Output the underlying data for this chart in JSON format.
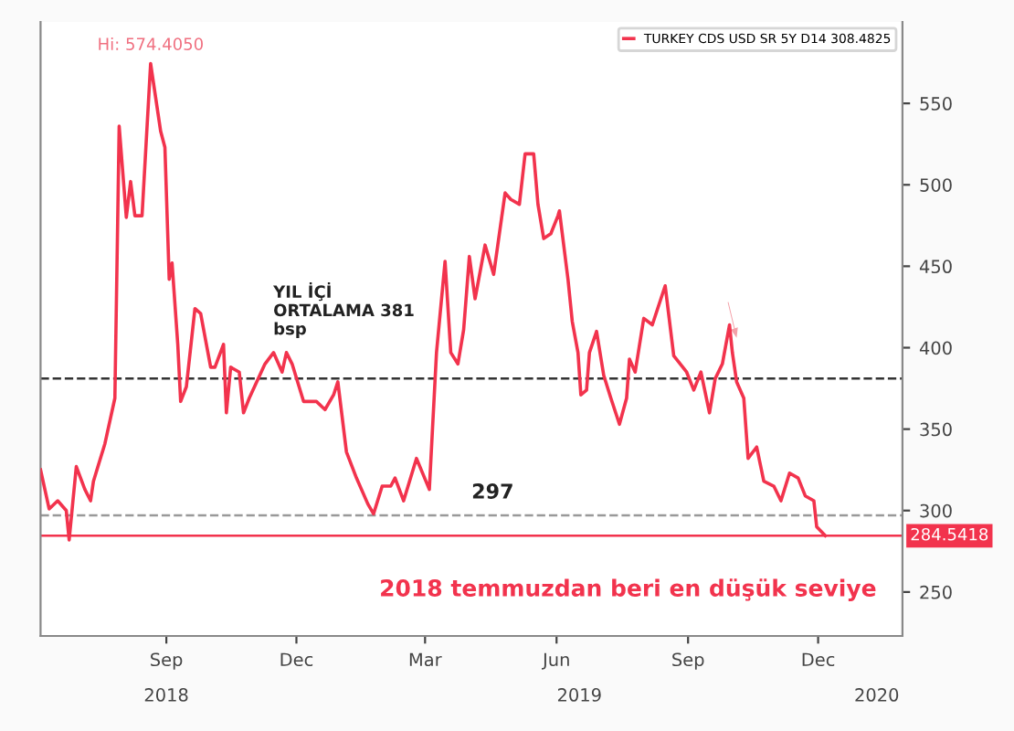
{
  "chart_data": {
    "type": "line",
    "x": [
      "2018-06-19",
      "2018-06-25",
      "2018-07-01",
      "2018-07-07",
      "2018-07-09",
      "2018-07-14",
      "2018-07-20",
      "2018-07-24",
      "2018-07-26",
      "2018-08-03",
      "2018-08-10",
      "2018-08-13",
      "2018-08-18",
      "2018-08-21",
      "2018-08-24",
      "2018-08-29",
      "2018-09-04",
      "2018-09-11",
      "2018-09-14",
      "2018-09-17",
      "2018-09-19",
      "2018-09-23",
      "2018-09-25",
      "2018-09-29",
      "2018-10-05",
      "2018-10-09",
      "2018-10-16",
      "2018-10-19",
      "2018-10-25",
      "2018-10-27",
      "2018-10-30",
      "2018-11-05",
      "2018-11-08",
      "2018-11-12",
      "2018-11-23",
      "2018-11-29",
      "2018-12-05",
      "2018-12-08",
      "2018-12-12",
      "2018-12-20",
      "2018-12-29",
      "2019-01-04",
      "2019-01-10",
      "2019-01-13",
      "2019-01-19",
      "2019-01-26",
      "2019-02-03",
      "2019-02-07",
      "2019-02-13",
      "2019-02-19",
      "2019-02-22",
      "2019-02-28",
      "2019-03-09",
      "2019-03-18",
      "2019-03-23",
      "2019-03-29",
      "2019-04-02",
      "2019-04-07",
      "2019-04-11",
      "2019-04-15",
      "2019-04-19",
      "2019-04-26",
      "2019-05-02",
      "2019-05-10",
      "2019-05-14",
      "2019-05-20",
      "2019-05-24",
      "2019-05-30",
      "2019-06-02",
      "2019-06-06",
      "2019-06-11",
      "2019-06-16",
      "2019-06-17",
      "2019-06-23",
      "2019-06-26",
      "2019-06-30",
      "2019-07-02",
      "2019-07-06",
      "2019-07-08",
      "2019-07-13",
      "2019-07-18",
      "2019-07-23",
      "2019-07-29",
      "2019-08-03",
      "2019-08-05",
      "2019-08-09",
      "2019-08-15",
      "2019-08-21",
      "2019-08-30",
      "2019-09-05",
      "2019-09-14",
      "2019-09-19",
      "2019-09-24",
      "2019-09-30",
      "2019-10-04",
      "2019-10-09",
      "2019-10-14",
      "2019-10-16",
      "2019-10-19",
      "2019-10-24",
      "2019-10-27",
      "2019-11-02",
      "2019-11-07",
      "2019-11-14",
      "2019-11-19",
      "2019-11-25",
      "2019-12-01",
      "2019-12-06",
      "2019-12-12",
      "2019-12-14",
      "2019-12-20"
    ],
    "series": [
      {
        "name": "TURKEY CDS USD SR 5Y D14 308.4825",
        "color": "#f2334d",
        "values": [
          325,
          301,
          306,
          300,
          282,
          327,
          313,
          306,
          318,
          341,
          369,
          536,
          480,
          502,
          481,
          481,
          574.405,
          533,
          523,
          442,
          452,
          402,
          367,
          376,
          424,
          421,
          388,
          388,
          402,
          360,
          388,
          385,
          360,
          369,
          390,
          397,
          385,
          397,
          390,
          367,
          367,
          362,
          371,
          379,
          336,
          320,
          304,
          298,
          315,
          315,
          320,
          306,
          332,
          313,
          397,
          453,
          397,
          390,
          411,
          456,
          430,
          463,
          445,
          495,
          491,
          488,
          519,
          519,
          488,
          467,
          470,
          481,
          484,
          442,
          416,
          397,
          371,
          374,
          397,
          410,
          383,
          369,
          353,
          369,
          393,
          385,
          418,
          414,
          438,
          395,
          385,
          374,
          385,
          360,
          381,
          390,
          414,
          397,
          379,
          369,
          332,
          339,
          318,
          315,
          306,
          323,
          320,
          309,
          306,
          290,
          284.5418
        ]
      }
    ],
    "xlim": [
      "2018-06-19",
      "2020-02-12"
    ],
    "xticks": [
      {
        "value": "2018-09-15",
        "label": "Sep"
      },
      {
        "value": "2018-12-15",
        "label": "Dec"
      },
      {
        "value": "2019-03-15",
        "label": "Mar"
      },
      {
        "value": "2019-06-15",
        "label": "Jun"
      },
      {
        "value": "2019-09-15",
        "label": "Sep"
      },
      {
        "value": "2019-12-15",
        "label": "Dec"
      }
    ],
    "x2lim": [
      "2018-06-19",
      "2020-02-12"
    ],
    "x2ticks": [
      {
        "value": "2018-09-15",
        "label": "2018"
      },
      {
        "value": "2019-07-01",
        "label": "2019"
      },
      {
        "value": "2020-01-25",
        "label": "2020"
      }
    ],
    "ylim": [
      223,
      600
    ],
    "yticks": [
      250,
      300,
      350,
      400,
      450,
      500,
      550
    ],
    "grid": false,
    "legend": "top right",
    "ref_lines": [
      {
        "axis": "y",
        "value": 381,
        "label": "YIL İÇİ\nORTALAMA 381\nbsp",
        "color": "#333333",
        "line_style": "dashed"
      },
      {
        "axis": "y",
        "value": 297,
        "label": "297",
        "color": "#999999",
        "line_style": "dashed"
      },
      {
        "axis": "y",
        "value": 284.5418,
        "label": "284.5418",
        "color": "#f2334d",
        "line_style": "solid"
      }
    ],
    "annotations": [
      {
        "text": "Hi: 574.4050",
        "x": "2018-09-04",
        "y": 574.405
      },
      "2018 temmuzdan beri en düşük seviye"
    ]
  }
}
